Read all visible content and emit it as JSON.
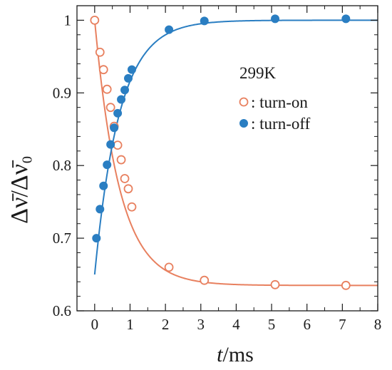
{
  "chart_data": {
    "type": "scatter",
    "title": "",
    "xlabel_italic": "t",
    "xlabel_rest": "/ms",
    "ylabel": "Δν̄/Δν̄₀",
    "xlim": [
      -0.5,
      8
    ],
    "ylim": [
      0.6,
      1.02
    ],
    "xticks": [
      0,
      1,
      2,
      3,
      4,
      5,
      6,
      7,
      8
    ],
    "yticks": [
      0.6,
      0.7,
      0.8,
      0.9,
      1.0
    ],
    "ytick_labels": [
      "0.6",
      "0.7",
      "0.8",
      "0.9",
      "1"
    ],
    "grid": false,
    "annotation": "299K",
    "legend_position": "right-middle",
    "series": [
      {
        "name": ": turn-on",
        "color": "#e8805f",
        "marker": "open-circle",
        "x": [
          0.0,
          0.15,
          0.25,
          0.35,
          0.45,
          0.55,
          0.65,
          0.75,
          0.85,
          0.95,
          1.05,
          2.1,
          3.1,
          5.1,
          7.1
        ],
        "y": [
          1.0,
          0.956,
          0.932,
          0.905,
          0.88,
          0.854,
          0.828,
          0.808,
          0.782,
          0.768,
          0.743,
          0.66,
          0.642,
          0.636,
          0.635
        ],
        "fit": {
          "model": "exponential_decay",
          "start": 1.0,
          "end": 0.635,
          "tau_ms": 0.7
        }
      },
      {
        "name": ": turn-off",
        "color": "#2a7ec2",
        "marker": "filled-circle",
        "x": [
          0.05,
          0.15,
          0.25,
          0.35,
          0.45,
          0.55,
          0.65,
          0.75,
          0.85,
          0.95,
          1.05,
          2.1,
          3.1,
          5.1,
          7.1
        ],
        "y": [
          0.7,
          0.74,
          0.772,
          0.801,
          0.829,
          0.852,
          0.872,
          0.891,
          0.904,
          0.92,
          0.932,
          0.987,
          0.999,
          1.002,
          1.002
        ],
        "fit": {
          "model": "exponential_rise",
          "start": 0.65,
          "end": 1.0,
          "tau_ms": 0.7
        }
      }
    ]
  }
}
